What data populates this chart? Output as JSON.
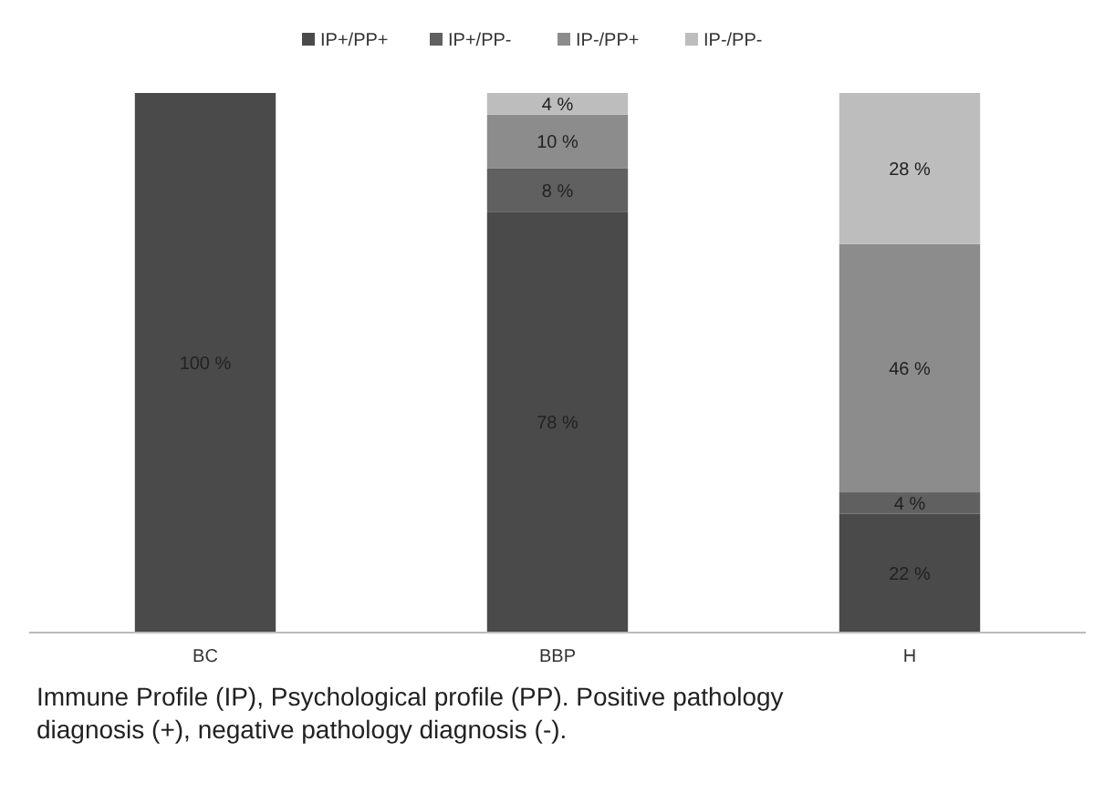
{
  "chart_data": {
    "type": "bar",
    "stacked": true,
    "categories": [
      "BC",
      "BBP",
      "H"
    ],
    "ylim": [
      0,
      100
    ],
    "tick_labels": "x",
    "legend": "top",
    "series": [
      {
        "name": "IP+/PP+",
        "color": "#4a4a4a",
        "values": [
          100,
          78,
          22
        ],
        "value_labels": [
          "100 %",
          "78 %",
          "22 %"
        ]
      },
      {
        "name": "IP+/PP-",
        "color": "#606060",
        "values": [
          0,
          8,
          4
        ],
        "value_labels": [
          null,
          "8 %",
          "4 %"
        ]
      },
      {
        "name": "IP-/PP+",
        "color": "#8c8c8c",
        "values": [
          0,
          10,
          46
        ],
        "value_labels": [
          null,
          "10 %",
          "46 %"
        ]
      },
      {
        "name": "IP-/PP-",
        "color": "#bdbdbd",
        "values": [
          0,
          4,
          28
        ],
        "value_labels": [
          null,
          "4 %",
          "28 %"
        ]
      }
    ],
    "annotations": [
      "Immune Profile (IP), Psychological profile (PP). Positive pathology diagnosis (+), negative pathology diagnosis (-)."
    ]
  }
}
